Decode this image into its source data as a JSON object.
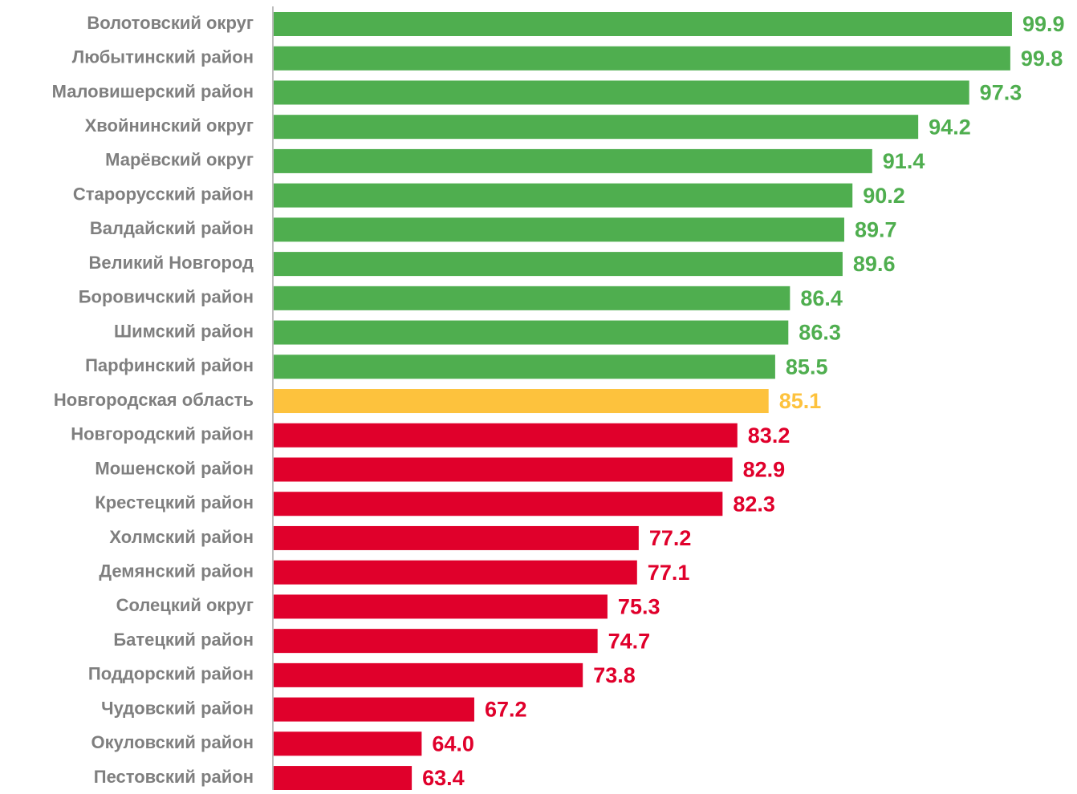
{
  "chart_data": {
    "type": "bar",
    "orientation": "horizontal",
    "categories": [
      "Волотовский округ",
      "Любытинский район",
      "Маловишерский район",
      "Хвойнинский округ",
      "Марёвский округ",
      "Старорусский район",
      "Валдайский район",
      "Великий Новгород",
      "Боровичский район",
      "Шимский район",
      "Парфинский район",
      "Новгородская область",
      "Новгородский район",
      "Мошенской район",
      "Крестецкий район",
      "Холмский район",
      "Демянский район",
      "Солецкий округ",
      "Батецкий район",
      "Поддорский район",
      "Чудовский район",
      "Окуловский район",
      "Пестовский район"
    ],
    "values": [
      99.9,
      99.8,
      97.3,
      94.2,
      91.4,
      90.2,
      89.7,
      89.6,
      86.4,
      86.3,
      85.5,
      85.1,
      83.2,
      82.9,
      82.3,
      77.2,
      77.1,
      75.3,
      74.7,
      73.8,
      67.2,
      64.0,
      63.4
    ],
    "value_labels": [
      "99.9",
      "99.8",
      "97.3",
      "94.2",
      "91.4",
      "90.2",
      "89.7",
      "89.6",
      "86.4",
      "86.3",
      "85.5",
      "85.1",
      "83.2",
      "82.9",
      "82.3",
      "77.2",
      "77.1",
      "75.3",
      "74.7",
      "73.8",
      "67.2",
      "64.0",
      "63.4"
    ],
    "colors": [
      "#4fae4f",
      "#4fae4f",
      "#4fae4f",
      "#4fae4f",
      "#4fae4f",
      "#4fae4f",
      "#4fae4f",
      "#4fae4f",
      "#4fae4f",
      "#4fae4f",
      "#4fae4f",
      "#fdc23d",
      "#e0002b",
      "#e0002b",
      "#e0002b",
      "#e0002b",
      "#e0002b",
      "#e0002b",
      "#e0002b",
      "#e0002b",
      "#e0002b",
      "#e0002b",
      "#e0002b"
    ],
    "xlim": [
      55,
      100
    ]
  }
}
